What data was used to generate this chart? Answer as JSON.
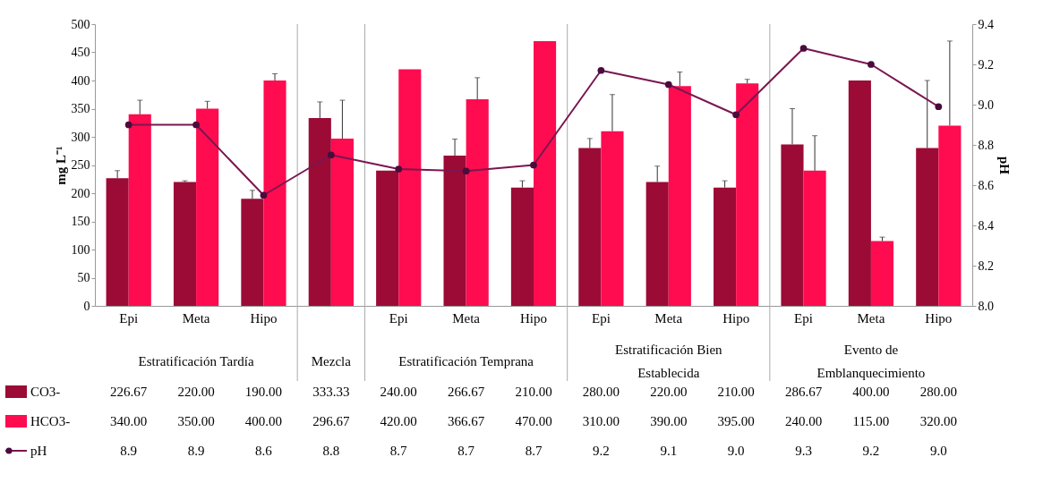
{
  "chart_data": {
    "type": "bar",
    "categories": [
      "Epi",
      "Meta",
      "Hipo",
      null,
      "Epi",
      "Meta",
      "Hipo",
      "Epi",
      "Meta",
      "Hipo",
      "Epi",
      "Meta",
      "Hipo"
    ],
    "series": [
      {
        "name": "CO3-",
        "type": "bar",
        "color": "#9b0b36",
        "values": [
          226.67,
          220.0,
          190.0,
          333.33,
          240.0,
          266.67,
          210.0,
          280.0,
          220.0,
          210.0,
          286.67,
          400.0,
          280.0
        ],
        "value_labels": [
          "226.67",
          "220.00",
          "190.00",
          "333.33",
          "240.00",
          "266.67",
          "210.00",
          "280.00",
          "220.00",
          "210.00",
          "286.67",
          "400.00",
          "280.00"
        ],
        "errors": [
          [
            226.67,
            240
          ],
          [
            220.0,
            222
          ],
          [
            190.0,
            205
          ],
          [
            333.33,
            362
          ],
          null,
          [
            266.67,
            296
          ],
          [
            210.0,
            222
          ],
          [
            280.0,
            297
          ],
          [
            220.0,
            248
          ],
          [
            210.0,
            222
          ],
          [
            286.67,
            350
          ],
          null,
          [
            280.0,
            400
          ]
        ]
      },
      {
        "name": "HCO3-",
        "type": "bar",
        "color": "#ff0b50",
        "values": [
          340.0,
          350.0,
          400.0,
          296.67,
          420.0,
          366.67,
          470.0,
          310.0,
          390.0,
          395.0,
          240.0,
          115.0,
          320.0
        ],
        "value_labels": [
          "340.00",
          "350.00",
          "400.00",
          "296.67",
          "420.00",
          "366.67",
          "470.00",
          "310.00",
          "390.00",
          "395.00",
          "240.00",
          "115.00",
          "320.00"
        ],
        "errors": [
          [
            340.0,
            365
          ],
          [
            350.0,
            363
          ],
          [
            400.0,
            412
          ],
          [
            296.67,
            365
          ],
          null,
          [
            366.67,
            405
          ],
          null,
          [
            310.0,
            375
          ],
          [
            390.0,
            415
          ],
          [
            395.0,
            402
          ],
          [
            240.0,
            302
          ],
          [
            115.0,
            122
          ],
          [
            320.0,
            470
          ]
        ]
      },
      {
        "name": "pH",
        "type": "line",
        "axis": "y2",
        "color": "#7a1650",
        "values": [
          8.9,
          8.9,
          8.55,
          8.75,
          8.68,
          8.67,
          8.7,
          9.17,
          9.1,
          8.95,
          9.28,
          9.2,
          8.99
        ],
        "value_labels": [
          "8.9",
          "8.9",
          "8.6",
          "8.8",
          "8.7",
          "8.7",
          "8.7",
          "9.2",
          "9.1",
          "9.0",
          "9.3",
          "9.2",
          "9.0"
        ]
      }
    ],
    "ylabel": "mg L⁻¹",
    "y2label": "pH",
    "ylim": [
      0,
      500
    ],
    "yticks": [
      0,
      50,
      100,
      150,
      200,
      250,
      300,
      350,
      400,
      450,
      500
    ],
    "y2lim": [
      8.0,
      9.4
    ],
    "y2ticks": [
      {
        "value": 8.0,
        "label": "8.0"
      },
      8.2,
      8.4,
      8.6,
      8.8,
      {
        "value": 9.0,
        "label": "9.0"
      },
      9.2,
      9.4
    ],
    "annotations": [
      "Estratificación Tardía",
      "Mezcla",
      "Estratificación Temprana",
      "Estratificación Bien Establecida",
      "Evento de Emblanquecimiento"
    ],
    "legend": "bottom",
    "grid": false,
    "marker": "circle",
    "line_style": "solid"
  }
}
